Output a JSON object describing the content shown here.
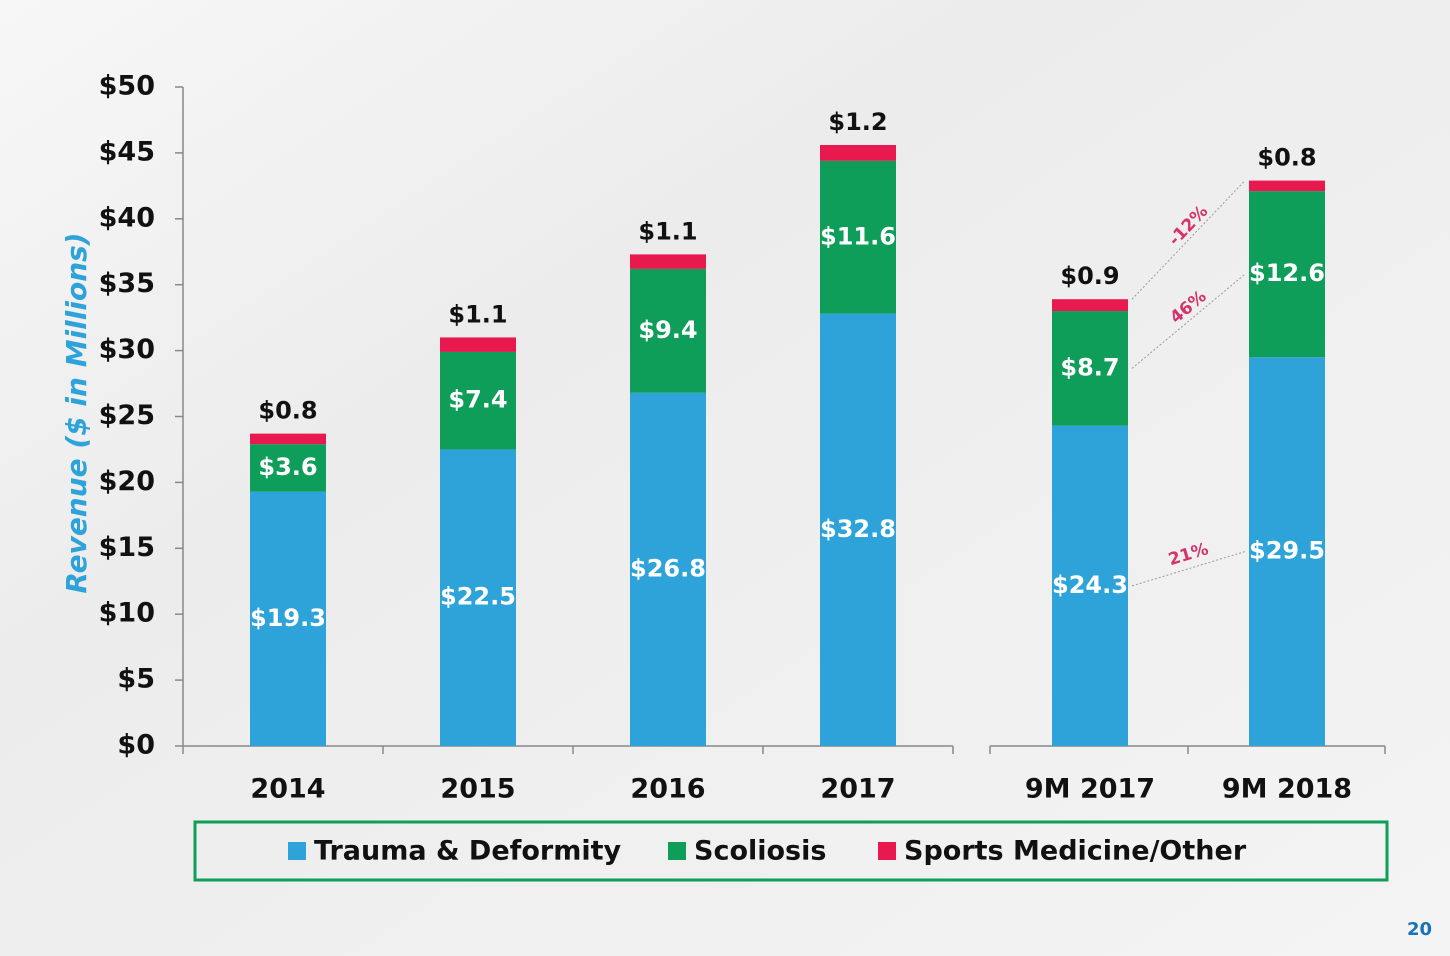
{
  "chart_data": {
    "type": "stacked_bar",
    "y_label": "Revenue  ($ in Millions)",
    "categories": [
      "2014",
      "2015",
      "2016",
      "2017",
      "9M 2017",
      "9M 2018"
    ],
    "series": [
      {
        "name": "Trauma & Deformity",
        "color": "#2ea3d9",
        "values": [
          19.3,
          22.5,
          26.8,
          32.8,
          24.3,
          29.5
        ],
        "value_labels": [
          "$19.3",
          "$22.5",
          "$26.8",
          "$32.8",
          "$24.3",
          "$29.5"
        ],
        "change_label": "21%"
      },
      {
        "name": "Scoliosis",
        "color": "#0f9d5a",
        "values": [
          3.6,
          7.4,
          9.4,
          11.6,
          8.7,
          12.6
        ],
        "value_labels": [
          "$3.6",
          "$7.4",
          "$9.4",
          "$11.6",
          "$8.7",
          "$12.6"
        ],
        "change_label": "46%"
      },
      {
        "name": "Sports Medicine/Other",
        "color": "#e8194f",
        "values": [
          0.8,
          1.1,
          1.1,
          1.2,
          0.9,
          0.8
        ],
        "value_labels": [
          "$0.8",
          "$1.1",
          "$1.1",
          "$1.2",
          "$0.9",
          "$0.8"
        ],
        "change_label": "-12%"
      }
    ],
    "ylim": [
      0,
      50
    ],
    "yticks": [
      {
        "value": 0,
        "label": "$0"
      },
      {
        "value": 5,
        "label": "$5"
      },
      {
        "value": 10,
        "label": "$10"
      },
      {
        "value": 15,
        "label": "$15"
      },
      {
        "value": 20,
        "label": "$20"
      },
      {
        "value": 25,
        "label": "$25"
      },
      {
        "value": 30,
        "label": "$30"
      },
      {
        "value": 35,
        "label": "$35"
      },
      {
        "value": 40,
        "label": "$40"
      },
      {
        "value": 45,
        "label": "$45"
      },
      {
        "value": 50,
        "label": "$50"
      }
    ],
    "page_number": "20"
  }
}
